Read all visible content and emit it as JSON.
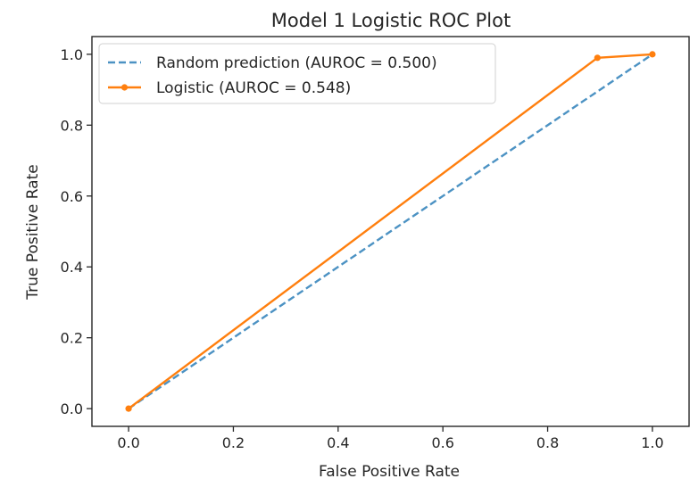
{
  "chart_data": {
    "type": "line",
    "title": "Model 1 Logistic ROC Plot",
    "xlabel": "False Positive Rate",
    "ylabel": "True Positive Rate",
    "xlim": [
      -0.07,
      1.07
    ],
    "ylim": [
      -0.05,
      1.05
    ],
    "xticks": [
      "0.0",
      "0.2",
      "0.4",
      "0.6",
      "0.8",
      "1.0"
    ],
    "yticks": [
      "0.0",
      "0.2",
      "0.4",
      "0.6",
      "0.8",
      "1.0"
    ],
    "grid": false,
    "legend_position": "top-left",
    "series": [
      {
        "name": "Random prediction (AUROC = 0.500)",
        "style": "dashed",
        "marker": "none",
        "color": "#1f77b4",
        "x": [
          0,
          1
        ],
        "y": [
          0,
          1
        ]
      },
      {
        "name": "Logistic (AUROC = 0.548)",
        "style": "solid",
        "marker": "dot",
        "color": "#ff7f0e",
        "x": [
          0,
          0.895,
          1
        ],
        "y": [
          0,
          0.99,
          1
        ]
      }
    ]
  }
}
